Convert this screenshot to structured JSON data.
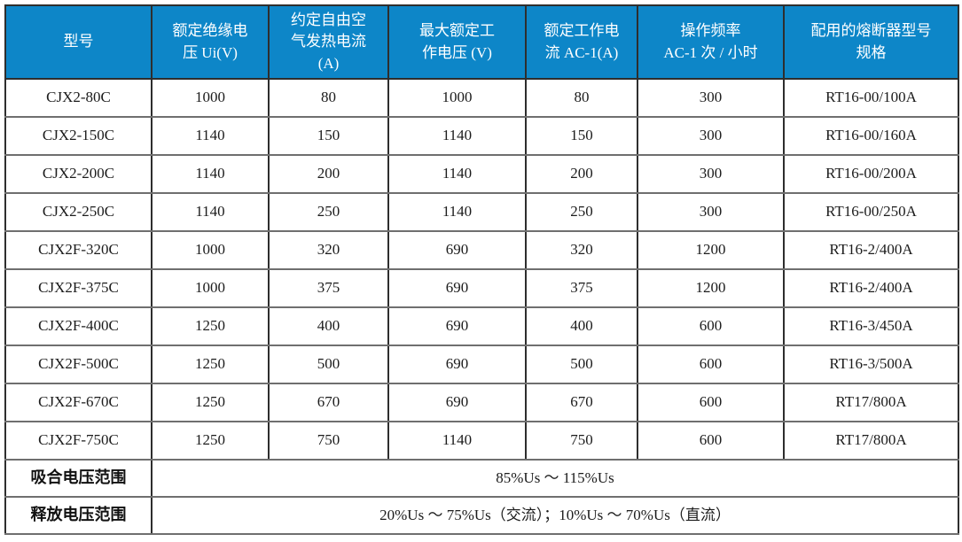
{
  "colors": {
    "header_bg": "#0d86c8",
    "header_text": "#ffffff",
    "border_dark": "#2e2e2e",
    "border_light": "#6f6f6f",
    "body_text": "#1c1c1c"
  },
  "table": {
    "columns": [
      "型号",
      "额定绝缘电\n压 Ui(V)",
      "约定自由空\n气发热电流\n(A)",
      "最大额定工\n作电压 (V)",
      "额定工作电\n流 AC-1(A)",
      "操作频率\nAC-1 次 / 小时",
      "配用的熔断器型号\n规格"
    ],
    "rows": [
      [
        "CJX2-80C",
        "1000",
        "80",
        "1000",
        "80",
        "300",
        "RT16-00/100A"
      ],
      [
        "CJX2-150C",
        "1140",
        "150",
        "1140",
        "150",
        "300",
        "RT16-00/160A"
      ],
      [
        "CJX2-200C",
        "1140",
        "200",
        "1140",
        "200",
        "300",
        "RT16-00/200A"
      ],
      [
        "CJX2-250C",
        "1140",
        "250",
        "1140",
        "250",
        "300",
        "RT16-00/250A"
      ],
      [
        "CJX2F-320C",
        "1000",
        "320",
        "690",
        "320",
        "1200",
        "RT16-2/400A"
      ],
      [
        "CJX2F-375C",
        "1000",
        "375",
        "690",
        "375",
        "1200",
        "RT16-2/400A"
      ],
      [
        "CJX2F-400C",
        "1250",
        "400",
        "690",
        "400",
        "600",
        "RT16-3/450A"
      ],
      [
        "CJX2F-500C",
        "1250",
        "500",
        "690",
        "500",
        "600",
        "RT16-3/500A"
      ],
      [
        "CJX2F-670C",
        "1250",
        "670",
        "690",
        "670",
        "600",
        "RT17/800A"
      ],
      [
        "CJX2F-750C",
        "1250",
        "750",
        "1140",
        "750",
        "600",
        "RT17/800A"
      ]
    ],
    "footer": [
      {
        "label": "吸合电压范围",
        "value": "85%Us ～ 115%Us"
      },
      {
        "label": "释放电压范围",
        "value": "20%Us ～ 75%Us（交流）；10%Us ～ 70%Us（直流）"
      }
    ]
  }
}
